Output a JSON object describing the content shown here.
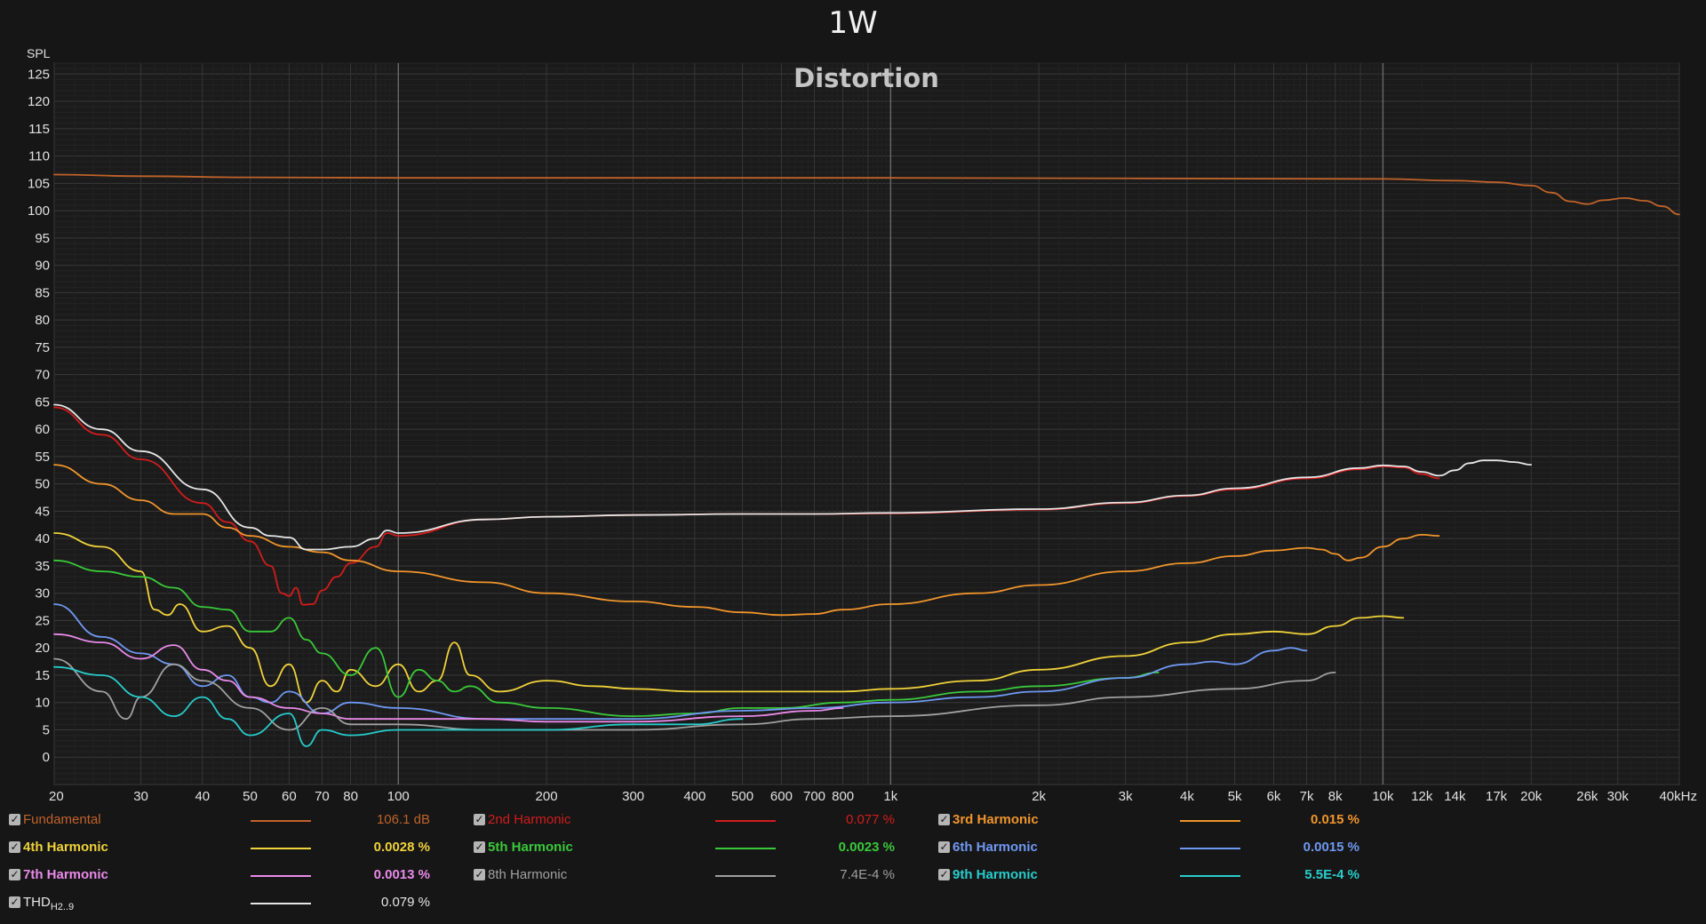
{
  "window": {
    "title": "1W"
  },
  "chart_data": {
    "type": "line",
    "title": "Distortion",
    "ylabel": "SPL",
    "xscale": "log",
    "xlim": [
      20,
      40000
    ],
    "ylim": [
      -5,
      127
    ],
    "grid": true,
    "legend": "bottom",
    "x_ticks": [
      20,
      30,
      40,
      50,
      60,
      70,
      80,
      100,
      200,
      300,
      400,
      500,
      600,
      700,
      800,
      1000,
      2000,
      3000,
      4000,
      5000,
      6000,
      7000,
      8000,
      10000,
      12000,
      14000,
      17000,
      20000,
      26000,
      30000,
      40000
    ],
    "x_tick_labels": [
      "20",
      "30",
      "40",
      "50",
      "60",
      "70",
      "80",
      "100",
      "200",
      "300",
      "400",
      "500",
      "600",
      "700",
      "800",
      "1k",
      "2k",
      "3k",
      "4k",
      "5k",
      "6k",
      "7k",
      "8k",
      "10k",
      "12k",
      "14k",
      "17k",
      "20k",
      "26k",
      "30k",
      "40kHz"
    ],
    "y_ticks": [
      125,
      120,
      115,
      110,
      105,
      100,
      95,
      90,
      85,
      80,
      75,
      70,
      65,
      60,
      55,
      50,
      45,
      40,
      35,
      30,
      25,
      20,
      15,
      10,
      5,
      0
    ],
    "series": [
      {
        "name": "Fundamental",
        "color": "#c0632a",
        "points": [
          [
            20,
            106.6
          ],
          [
            30,
            106.3
          ],
          [
            50,
            106.1
          ],
          [
            100,
            106
          ],
          [
            1000,
            106
          ],
          [
            10000,
            105.8
          ],
          [
            14000,
            105.5
          ],
          [
            17000,
            105.2
          ],
          [
            20000,
            104.6
          ],
          [
            22000,
            103.3
          ],
          [
            24000,
            101.7
          ],
          [
            26000,
            101.2
          ],
          [
            28000,
            101.9
          ],
          [
            31000,
            102.3
          ],
          [
            34000,
            101.8
          ],
          [
            37000,
            100.8
          ],
          [
            40000,
            99.3
          ]
        ]
      },
      {
        "name": "2nd Harmonic",
        "color": "#d21c1c",
        "points": [
          [
            20,
            64
          ],
          [
            25,
            59
          ],
          [
            30,
            54.5
          ],
          [
            40,
            46.5
          ],
          [
            45,
            43
          ],
          [
            50,
            39.5
          ],
          [
            55,
            35
          ],
          [
            58,
            30
          ],
          [
            60,
            29.5
          ],
          [
            62,
            31
          ],
          [
            64,
            27.9
          ],
          [
            67,
            28
          ],
          [
            70,
            30.5
          ],
          [
            75,
            33
          ],
          [
            80,
            35.5
          ],
          [
            90,
            38.5
          ],
          [
            95,
            41
          ],
          [
            100,
            40.5
          ],
          [
            150,
            43.5
          ],
          [
            200,
            44
          ],
          [
            300,
            44.3
          ],
          [
            500,
            44.5
          ],
          [
            700,
            44.5
          ],
          [
            1000,
            44.6
          ],
          [
            2000,
            45.3
          ],
          [
            3000,
            46.5
          ],
          [
            4000,
            47.8
          ],
          [
            5000,
            49
          ],
          [
            7000,
            51
          ],
          [
            9000,
            52.7
          ],
          [
            10000,
            53.2
          ],
          [
            11000,
            53
          ],
          [
            12000,
            51.8
          ],
          [
            13000,
            51
          ]
        ]
      },
      {
        "name": "3rd Harmonic",
        "color": "#f0952c",
        "points": [
          [
            20,
            53.5
          ],
          [
            25,
            50
          ],
          [
            30,
            47
          ],
          [
            35,
            44.5
          ],
          [
            40,
            44.5
          ],
          [
            45,
            42
          ],
          [
            50,
            40.5
          ],
          [
            60,
            38.5
          ],
          [
            70,
            37.5
          ],
          [
            80,
            36
          ],
          [
            100,
            34
          ],
          [
            150,
            32
          ],
          [
            200,
            30
          ],
          [
            300,
            28.5
          ],
          [
            400,
            27.5
          ],
          [
            500,
            26.5
          ],
          [
            600,
            26
          ],
          [
            700,
            26.2
          ],
          [
            800,
            27
          ],
          [
            1000,
            28
          ],
          [
            1500,
            30
          ],
          [
            2000,
            31.5
          ],
          [
            3000,
            34
          ],
          [
            4000,
            35.5
          ],
          [
            5000,
            36.8
          ],
          [
            6000,
            37.8
          ],
          [
            7000,
            38.3
          ],
          [
            7500,
            38
          ],
          [
            8000,
            37.2
          ],
          [
            8500,
            36
          ],
          [
            9000,
            36.5
          ],
          [
            10000,
            38.5
          ],
          [
            11000,
            40
          ],
          [
            12000,
            40.7
          ],
          [
            13000,
            40.5
          ]
        ]
      },
      {
        "name": "4th Harmonic",
        "color": "#f0d23a",
        "points": [
          [
            20,
            41
          ],
          [
            25,
            38.5
          ],
          [
            30,
            34
          ],
          [
            32,
            27
          ],
          [
            34,
            26
          ],
          [
            36,
            28
          ],
          [
            40,
            23
          ],
          [
            45,
            24
          ],
          [
            50,
            20
          ],
          [
            55,
            13
          ],
          [
            60,
            17
          ],
          [
            65,
            10
          ],
          [
            70,
            14
          ],
          [
            75,
            12
          ],
          [
            80,
            16
          ],
          [
            90,
            13
          ],
          [
            100,
            17
          ],
          [
            110,
            12
          ],
          [
            120,
            14
          ],
          [
            130,
            21
          ],
          [
            140,
            15
          ],
          [
            160,
            12
          ],
          [
            200,
            14
          ],
          [
            250,
            13
          ],
          [
            300,
            12.5
          ],
          [
            400,
            12
          ],
          [
            500,
            12
          ],
          [
            600,
            12
          ],
          [
            800,
            12
          ],
          [
            1000,
            12.5
          ],
          [
            1500,
            14
          ],
          [
            2000,
            16
          ],
          [
            3000,
            18.5
          ],
          [
            4000,
            21
          ],
          [
            5000,
            22.5
          ],
          [
            6000,
            23
          ],
          [
            7000,
            22.5
          ],
          [
            8000,
            24
          ],
          [
            9000,
            25.5
          ],
          [
            10000,
            25.8
          ],
          [
            11000,
            25.5
          ]
        ]
      },
      {
        "name": "5th Harmonic",
        "color": "#3ac83a",
        "points": [
          [
            20,
            36
          ],
          [
            25,
            34
          ],
          [
            30,
            33
          ],
          [
            35,
            31
          ],
          [
            40,
            27.5
          ],
          [
            45,
            27
          ],
          [
            50,
            23
          ],
          [
            55,
            23
          ],
          [
            60,
            25.5
          ],
          [
            65,
            21.5
          ],
          [
            70,
            19
          ],
          [
            80,
            15
          ],
          [
            90,
            20
          ],
          [
            100,
            11
          ],
          [
            110,
            16
          ],
          [
            120,
            14
          ],
          [
            130,
            12
          ],
          [
            140,
            13
          ],
          [
            160,
            10
          ],
          [
            200,
            9
          ],
          [
            300,
            7.5
          ],
          [
            400,
            8
          ],
          [
            500,
            9
          ],
          [
            600,
            9
          ],
          [
            800,
            10
          ],
          [
            1000,
            10.5
          ],
          [
            1500,
            12
          ],
          [
            2000,
            13
          ],
          [
            3000,
            14.5
          ],
          [
            3500,
            15.5
          ]
        ]
      },
      {
        "name": "6th Harmonic",
        "color": "#6f98f2",
        "points": [
          [
            20,
            28
          ],
          [
            25,
            22
          ],
          [
            30,
            19
          ],
          [
            35,
            17
          ],
          [
            40,
            13
          ],
          [
            45,
            15
          ],
          [
            50,
            11
          ],
          [
            55,
            10
          ],
          [
            60,
            12
          ],
          [
            70,
            8
          ],
          [
            80,
            10
          ],
          [
            100,
            9
          ],
          [
            150,
            7
          ],
          [
            200,
            7
          ],
          [
            300,
            7
          ],
          [
            500,
            8.5
          ],
          [
            700,
            9
          ],
          [
            1000,
            10
          ],
          [
            1500,
            11
          ],
          [
            2000,
            12
          ],
          [
            3000,
            14.5
          ],
          [
            4000,
            17
          ],
          [
            4500,
            17.5
          ],
          [
            5000,
            17
          ],
          [
            6000,
            19.5
          ],
          [
            6500,
            20
          ],
          [
            7000,
            19.5
          ]
        ]
      },
      {
        "name": "7th Harmonic",
        "color": "#e98be9",
        "points": [
          [
            20,
            22.5
          ],
          [
            25,
            21
          ],
          [
            30,
            18
          ],
          [
            35,
            20.5
          ],
          [
            40,
            16
          ],
          [
            45,
            14
          ],
          [
            50,
            11
          ],
          [
            60,
            9
          ],
          [
            70,
            8
          ],
          [
            80,
            7
          ],
          [
            100,
            7
          ],
          [
            150,
            7
          ],
          [
            200,
            6.5
          ],
          [
            300,
            6.5
          ],
          [
            500,
            7.5
          ],
          [
            700,
            8.5
          ],
          [
            800,
            9
          ]
        ]
      },
      {
        "name": "8th Harmonic",
        "color": "#a0a0a0",
        "points": [
          [
            20,
            18
          ],
          [
            25,
            12
          ],
          [
            28,
            7
          ],
          [
            30,
            11
          ],
          [
            35,
            17
          ],
          [
            40,
            14
          ],
          [
            50,
            9
          ],
          [
            60,
            5
          ],
          [
            70,
            9
          ],
          [
            80,
            6
          ],
          [
            100,
            6
          ],
          [
            150,
            5
          ],
          [
            200,
            5
          ],
          [
            300,
            5
          ],
          [
            500,
            6
          ],
          [
            700,
            7
          ],
          [
            1000,
            7.5
          ],
          [
            2000,
            9.5
          ],
          [
            3000,
            11
          ],
          [
            5000,
            12.5
          ],
          [
            7000,
            14
          ],
          [
            8000,
            15.5
          ]
        ]
      },
      {
        "name": "9th Harmonic",
        "color": "#28cccc",
        "points": [
          [
            20,
            16.5
          ],
          [
            25,
            15
          ],
          [
            30,
            11
          ],
          [
            35,
            7.5
          ],
          [
            40,
            11
          ],
          [
            45,
            7
          ],
          [
            50,
            4
          ],
          [
            60,
            8
          ],
          [
            65,
            2
          ],
          [
            70,
            5
          ],
          [
            80,
            4
          ],
          [
            100,
            5
          ],
          [
            150,
            5
          ],
          [
            200,
            5
          ],
          [
            300,
            6
          ],
          [
            400,
            6
          ],
          [
            500,
            7
          ]
        ]
      },
      {
        "name": "THD",
        "color": "#e6e6e6",
        "points": [
          [
            20,
            64.5
          ],
          [
            25,
            60
          ],
          [
            30,
            56
          ],
          [
            40,
            49
          ],
          [
            50,
            42
          ],
          [
            55,
            40.5
          ],
          [
            60,
            40.2
          ],
          [
            65,
            38
          ],
          [
            70,
            38
          ],
          [
            80,
            38.5
          ],
          [
            90,
            40
          ],
          [
            95,
            41.5
          ],
          [
            100,
            41
          ],
          [
            150,
            43.5
          ],
          [
            200,
            44
          ],
          [
            300,
            44.3
          ],
          [
            500,
            44.5
          ],
          [
            700,
            44.5
          ],
          [
            1000,
            44.7
          ],
          [
            2000,
            45.4
          ],
          [
            3000,
            46.6
          ],
          [
            4000,
            47.9
          ],
          [
            5000,
            49.2
          ],
          [
            7000,
            51.2
          ],
          [
            9000,
            52.9
          ],
          [
            10000,
            53.4
          ],
          [
            11000,
            53.2
          ],
          [
            12000,
            52.2
          ],
          [
            13000,
            51.5
          ],
          [
            14000,
            52.5
          ],
          [
            15000,
            53.8
          ],
          [
            16000,
            54.3
          ],
          [
            17000,
            54.3
          ],
          [
            18500,
            54
          ],
          [
            20000,
            53.5
          ]
        ]
      }
    ]
  },
  "legend": [
    {
      "name": "Fundamental",
      "value": "106.1 dB",
      "color": "#c0632a",
      "bold": false
    },
    {
      "name": "2nd Harmonic",
      "value": "0.077 %",
      "color": "#d21c1c",
      "bold": false
    },
    {
      "name": "3rd Harmonic",
      "value": "0.015 %",
      "color": "#f0952c",
      "bold": true
    },
    {
      "name": "4th Harmonic",
      "value": "0.0028 %",
      "color": "#f0d23a",
      "bold": true
    },
    {
      "name": "5th Harmonic",
      "value": "0.0023 %",
      "color": "#3ac83a",
      "bold": true
    },
    {
      "name": "6th Harmonic",
      "value": "0.0015 %",
      "color": "#6f98f2",
      "bold": true
    },
    {
      "name": "7th Harmonic",
      "value": "0.0013 %",
      "color": "#e98be9",
      "bold": true
    },
    {
      "name": "8th Harmonic",
      "value": "7.4E-4 %",
      "color": "#a0a0a0",
      "bold": false
    },
    {
      "name": "9th Harmonic",
      "value": "5.5E-4 %",
      "color": "#28cccc",
      "bold": true
    },
    {
      "name": "THD",
      "name_sub": "H2..9",
      "value": "0.079 %",
      "color": "#e6e6e6",
      "bold": false
    }
  ]
}
